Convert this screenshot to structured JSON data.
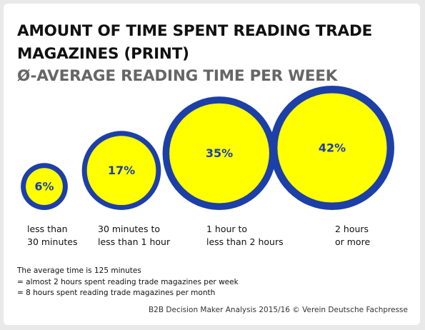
{
  "header": {
    "title": "AMOUNT OF TIME SPENT READING TRADE MAGAZINES (PRINT)",
    "subtitle": "Ø-AVERAGE READING TIME PER WEEK"
  },
  "colors": {
    "ring": "#1c3fa8",
    "fill": "#ffff00",
    "value_text": "#1c3fa8"
  },
  "chart_data": {
    "type": "bubble",
    "title": "AMOUNT OF TIME SPENT READING TRADE MAGAZINES (PRINT)",
    "subtitle": "Ø-AVERAGE READING TIME PER WEEK",
    "categories": [
      "less than\n30 minutes",
      "30 minutes to\nless than 1 hour",
      "1 hour to\nless than 2 hours",
      "2 hours\nor more"
    ],
    "values": [
      6,
      17,
      35,
      42
    ],
    "value_labels": [
      "6%",
      "17%",
      "35%",
      "42%"
    ],
    "unit": "%"
  },
  "notes": [
    "The average time is 125 minutes",
    "= almost 2 hours spent reading trade magazines per week",
    "= 8 hours spent reading trade magazines per month"
  ],
  "source": "B2B Decision Maker Analysis 2015/16 © Verein Deutsche Fachpresse"
}
